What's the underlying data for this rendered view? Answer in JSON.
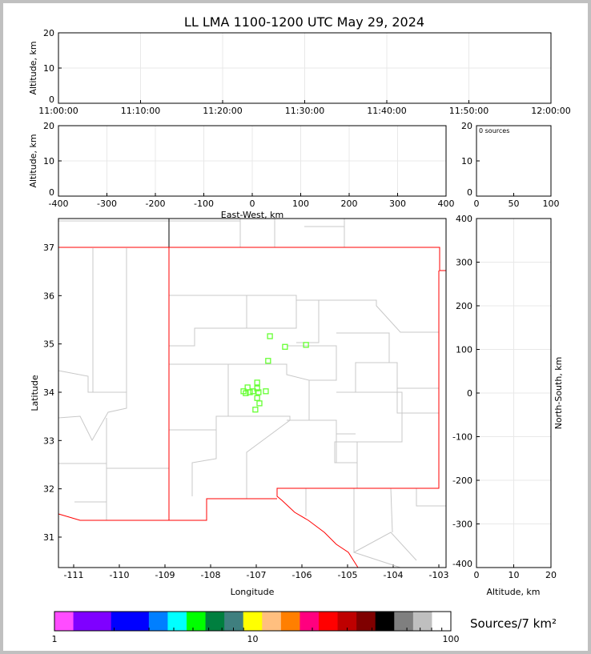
{
  "chart_data": [
    {
      "type": "scatter",
      "name_id": "time-height",
      "title": "LL LMA 1100-1200 UTC May 29, 2024",
      "ylabel": "Altitude, km",
      "xticks": [
        "11:00:00",
        "11:10:00",
        "11:20:00",
        "11:30:00",
        "11:40:00",
        "11:50:00",
        "12:00:00"
      ],
      "yticks": [
        "0",
        "10",
        "20"
      ],
      "ylim": [
        0,
        20
      ],
      "grid": true,
      "points": []
    },
    {
      "type": "scatter",
      "name_id": "ew-height",
      "xlabel": "East-West, km",
      "ylabel": "Altitude, km",
      "xlim": [
        -400,
        400
      ],
      "ylim": [
        0,
        20
      ],
      "xticks": [
        "-400",
        "-300",
        "-200",
        "-100",
        "0",
        "100",
        "200",
        "300",
        "400"
      ],
      "yticks": [
        "0",
        "10",
        "20"
      ],
      "grid": true,
      "points": []
    },
    {
      "type": "bar",
      "name_id": "histogram",
      "annotation": "0 sources",
      "xlim": [
        0,
        100
      ],
      "ylim": [
        0,
        20
      ],
      "xticks": [
        "0",
        "50",
        "100"
      ],
      "yticks": [
        "0",
        "10",
        "20"
      ],
      "values": []
    },
    {
      "type": "scatter",
      "name_id": "plan-view",
      "xlabel": "Longitude",
      "ylabel": "Latitude",
      "xlim": [
        -111.33,
        -102.84
      ],
      "ylim": [
        30.37,
        37.6
      ],
      "xticks": [
        "-111",
        "-110",
        "-109",
        "-108",
        "-107",
        "-106",
        "-105",
        "-104",
        "-103"
      ],
      "yticks": [
        "31",
        "32",
        "33",
        "34",
        "35",
        "36",
        "37"
      ],
      "marker_color": "#66ff33",
      "points": [
        [
          -106.7,
          35.16
        ],
        [
          -106.37,
          34.94
        ],
        [
          -105.91,
          34.98
        ],
        [
          -106.74,
          34.65
        ],
        [
          -106.98,
          34.2
        ],
        [
          -107.19,
          34.1
        ],
        [
          -106.98,
          34.08
        ],
        [
          -107.28,
          34.02
        ],
        [
          -107.14,
          34.0
        ],
        [
          -107.07,
          34.02
        ],
        [
          -106.95,
          34.0
        ],
        [
          -106.79,
          34.02
        ],
        [
          -106.98,
          33.88
        ],
        [
          -106.93,
          33.77
        ],
        [
          -107.02,
          33.64
        ],
        [
          -107.23,
          33.98
        ]
      ]
    },
    {
      "type": "scatter",
      "name_id": "ns-height",
      "xlabel": "Altitude, km",
      "ylabel": "North-South, km",
      "xlim": [
        0,
        20
      ],
      "ylim": [
        -400,
        400
      ],
      "xticks": [
        "0",
        "10",
        "20"
      ],
      "yticks": [
        "-400",
        "-300",
        "-200",
        "-100",
        "0",
        "100",
        "200",
        "300",
        "400"
      ],
      "grid": true,
      "points": []
    },
    {
      "type": "heatmap",
      "name_id": "colorbar",
      "label": "Sources/7 km²",
      "scale": "log",
      "range": [
        1,
        100
      ],
      "ticks": [
        "1",
        "10",
        "100"
      ],
      "colors": [
        "#ff4cff",
        "#7f00ff",
        "#7f00ff",
        "#0000ff",
        "#0000ff",
        "#007fff",
        "#00ffff",
        "#00ff00",
        "#007f3f",
        "#3f7f7f",
        "#ffff00",
        "#ffbf7f",
        "#ff7f00",
        "#ff007f",
        "#ff0000",
        "#bf0000",
        "#7f0000",
        "#000000",
        "#7f7f7f",
        "#bfbfbf",
        "#ffffff"
      ]
    }
  ]
}
